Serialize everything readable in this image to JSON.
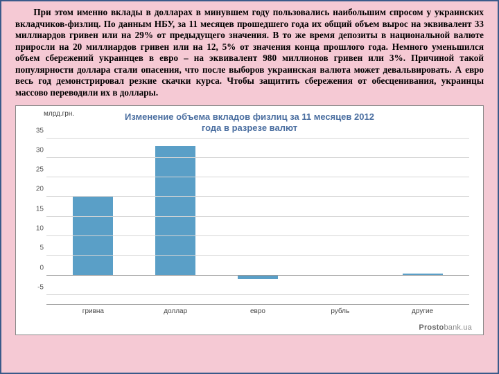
{
  "paragraph": "При этом именно вклады в долларах в минувшем году пользовались наибольшим спросом у украинских вкладчиков-физлиц. По данным НБУ, за 11 месяцев прошедшего года их общий объем вырос на эквивалент 33 миллиардов гривен или на 29% от предыдущего значения. В то же время депозиты в национальной валюте приросли на 20 миллиардов гривен или на 12, 5% от значения конца прошлого года. Немного уменьшился объем сбережений украинцев в евро – на эквивалент 980 миллионов гривен или 3%. Причиной такой популярности доллара стали опасения, что после выборов украинская валюта может девальвировать. А евро весь год демонстрировал резкие скачки курса. Чтобы защитить сбережения от обесценивания, украинцы массово переводили их в доллары.",
  "chart": {
    "type": "bar",
    "title_line1": "Изменение объема вкладов физлиц за 11 месяцев 2012",
    "title_line2": "года в разрезе валют",
    "ylabel": "млрд.грн.",
    "categories": [
      "гривна",
      "доллар",
      "евро",
      "рубль",
      "другие"
    ],
    "values": [
      20,
      33,
      -1.0,
      0.1,
      0.4
    ],
    "bar_color": "#5a9fc7",
    "ymin": -7.2,
    "ymax": 35,
    "yticks": [
      -5,
      0,
      5,
      10,
      15,
      20,
      25,
      30,
      35
    ],
    "background_color": "#ffffff",
    "grid_color": "#d5d5d5",
    "axis_color": "#999999",
    "label_fontsize": 10,
    "title_fontsize": 13,
    "title_color": "#4a6ea0",
    "watermark_strong": "Prosto",
    "watermark_rest": "bank.ua"
  }
}
